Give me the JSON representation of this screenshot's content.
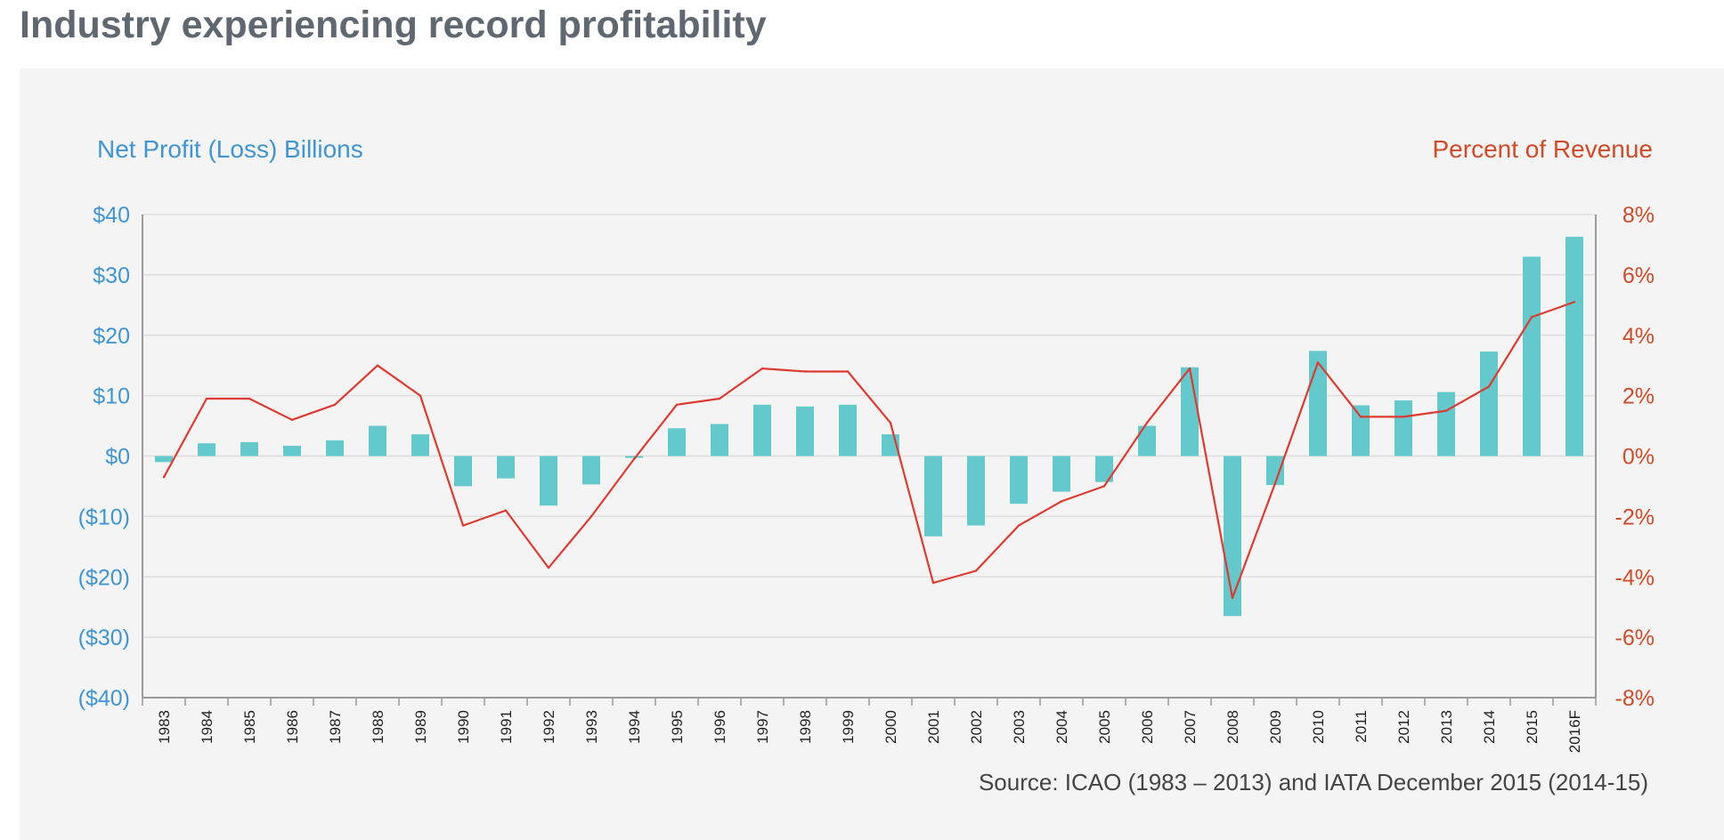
{
  "page": {
    "title": "Industry experiencing record profitability"
  },
  "colors": {
    "left_axis": "#3f95d3",
    "right_axis": "#d04b27",
    "bars": "#63c9cc",
    "line": "#df3a30",
    "grid": "#dedede",
    "axis": "#9a9a9a",
    "tick_label": "#222222",
    "panel_bg": "#f4f4f4",
    "title": "#5f6770"
  },
  "chart_data": {
    "type": "bar",
    "title": "Industry experiencing record profitability",
    "left_axis_label": "Net Profit (Loss) Billions",
    "right_axis_label": "Percent of Revenue",
    "left_ylim": [
      -40,
      40
    ],
    "right_ylim": [
      -8,
      8
    ],
    "left_ticks": [
      {
        "value": 40,
        "label": "$40"
      },
      {
        "value": 30,
        "label": "$30"
      },
      {
        "value": 20,
        "label": "$20"
      },
      {
        "value": 10,
        "label": "$10"
      },
      {
        "value": 0,
        "label": "$0"
      },
      {
        "value": -10,
        "label": "($10)"
      },
      {
        "value": -20,
        "label": "($20)"
      },
      {
        "value": -30,
        "label": "($30)"
      },
      {
        "value": -40,
        "label": "($40)"
      }
    ],
    "right_ticks": [
      {
        "value": 8,
        "label": "8%"
      },
      {
        "value": 6,
        "label": "6%"
      },
      {
        "value": 4,
        "label": "4%"
      },
      {
        "value": 2,
        "label": "2%"
      },
      {
        "value": 0,
        "label": "0%"
      },
      {
        "value": -2,
        "label": "-2%"
      },
      {
        "value": -4,
        "label": "-4%"
      },
      {
        "value": -6,
        "label": "-6%"
      },
      {
        "value": -8,
        "label": "-8%"
      }
    ],
    "grid": true,
    "categories": [
      "1983",
      "1984",
      "1985",
      "1986",
      "1987",
      "1988",
      "1989",
      "1990",
      "1991",
      "1992",
      "1993",
      "1994",
      "1995",
      "1996",
      "1997",
      "1998",
      "1999",
      "2000",
      "2001",
      "2002",
      "2003",
      "2004",
      "2005",
      "2006",
      "2007",
      "2008",
      "2009",
      "2010",
      "2011",
      "2012",
      "2013",
      "2014",
      "2015",
      "2016F"
    ],
    "series": [
      {
        "axis": "left",
        "chart": "bar",
        "values": [
          -1,
          2.1,
          2.3,
          1.7,
          2.6,
          5.0,
          3.6,
          -5.0,
          -3.7,
          -8.2,
          -4.7,
          -0.3,
          4.6,
          5.3,
          8.5,
          8.2,
          8.5,
          3.6,
          -13.3,
          -11.5,
          -7.9,
          -5.9,
          -4.3,
          5.0,
          14.7,
          -26.5,
          -4.8,
          17.4,
          8.4,
          9.2,
          10.6,
          17.3,
          33.0,
          36.3
        ]
      },
      {
        "axis": "right",
        "chart": "line",
        "values": [
          -0.7,
          1.9,
          1.9,
          1.2,
          1.7,
          3.0,
          2.0,
          -2.3,
          -1.8,
          -3.7,
          -2.0,
          -0.1,
          1.7,
          1.9,
          2.9,
          2.8,
          2.8,
          1.1,
          -4.2,
          -3.8,
          -2.3,
          -1.5,
          -1.0,
          1.1,
          2.9,
          -4.7,
          -0.9,
          3.1,
          1.3,
          1.3,
          1.5,
          2.3,
          4.6,
          5.1
        ]
      }
    ],
    "source": "Source: ICAO (1983 – 2013) and IATA December 2015 (2014-15)"
  }
}
